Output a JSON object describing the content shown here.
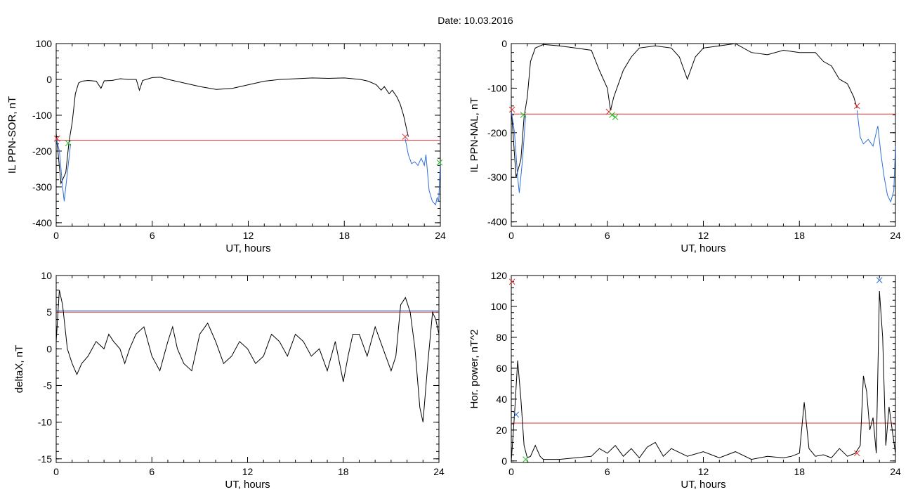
{
  "figure": {
    "title": "Date:  10.03.2016"
  },
  "chart_data": [
    {
      "type": "line",
      "panel": "top-left",
      "xlabel": "UT, hours",
      "ylabel": "IL PPN-SOR, nT",
      "xlim": [
        0,
        24
      ],
      "ylim": [
        -410,
        100
      ],
      "xticks": [
        0,
        6,
        12,
        18,
        24
      ],
      "yticks": [
        100,
        0,
        -100,
        -200,
        -300,
        -400
      ],
      "grid": false,
      "series": [
        {
          "color": "#000000",
          "x": [
            0,
            0.3,
            0.6,
            0.8,
            1.0,
            1.2,
            1.4,
            1.6,
            2.0,
            2.5,
            2.8,
            3.0,
            3.5,
            4.0,
            4.5,
            5.0,
            5.2,
            5.4,
            6.0,
            6.5,
            7.0,
            8.0,
            9.0,
            10.0,
            11.0,
            12.0,
            13.0,
            14.0,
            15.0,
            16.0,
            17.0,
            18.0,
            19.0,
            19.5,
            20.0,
            20.3,
            20.5,
            20.8,
            21.0,
            21.3,
            21.5,
            21.7,
            21.9,
            22.0
          ],
          "values": [
            -150,
            -290,
            -260,
            -175,
            -120,
            -40,
            -10,
            -5,
            -3,
            -5,
            -25,
            -4,
            -3,
            2,
            0,
            0,
            -30,
            -3,
            5,
            6,
            0,
            -10,
            -20,
            -28,
            -25,
            -15,
            -5,
            0,
            2,
            4,
            3,
            4,
            0,
            -5,
            -15,
            -30,
            -20,
            -40,
            -30,
            -50,
            -70,
            -100,
            -140,
            -160
          ]
        },
        {
          "color": "#2f6fd6",
          "x": [
            0.0,
            0.2,
            0.4,
            0.5,
            0.7,
            0.9,
            21.8,
            22.0,
            22.2,
            22.4,
            22.6,
            22.8,
            23.0,
            23.1,
            23.3,
            23.5,
            23.7,
            23.8,
            23.9,
            24.0
          ],
          "values": [
            -165,
            -200,
            -300,
            -340,
            -260,
            -180,
            -165,
            -210,
            -235,
            -230,
            -240,
            -220,
            -240,
            -210,
            -310,
            -340,
            -350,
            -330,
            -340,
            -230
          ]
        }
      ],
      "reference_lines": [
        {
          "y": -170,
          "color": "#e0302f"
        }
      ],
      "markers": [
        {
          "x": 0.05,
          "y": -165,
          "color": "#e0302f",
          "symbol": "x"
        },
        {
          "x": 0.75,
          "y": -178,
          "color": "#2dbd2d",
          "symbol": "x"
        },
        {
          "x": 21.8,
          "y": -160,
          "color": "#e0302f",
          "symbol": "x"
        },
        {
          "x": 23.95,
          "y": -232,
          "color": "#2dbd2d",
          "symbol": "x"
        }
      ]
    },
    {
      "type": "line",
      "panel": "top-right",
      "xlabel": "UT, hours",
      "ylabel": "IL PPN-NAL, nT",
      "xlim": [
        0,
        24
      ],
      "ylim": [
        -410,
        0
      ],
      "xticks": [
        0,
        6,
        12,
        18,
        24
      ],
      "yticks": [
        0,
        -100,
        -200,
        -300,
        -400
      ],
      "grid": false,
      "series": [
        {
          "color": "#000000",
          "x": [
            0,
            0.3,
            0.6,
            0.8,
            1.0,
            1.2,
            1.5,
            2.0,
            3.0,
            4.0,
            5.0,
            5.5,
            6.0,
            6.2,
            6.4,
            6.6,
            7.0,
            7.5,
            8.0,
            9.0,
            10.0,
            10.5,
            11.0,
            11.5,
            12.0,
            13.0,
            14.0,
            15.0,
            16.0,
            17.0,
            18.0,
            19.0,
            19.5,
            20.0,
            20.5,
            21.0,
            21.4,
            21.6
          ],
          "values": [
            -145,
            -300,
            -260,
            -165,
            -120,
            -40,
            -10,
            -2,
            -5,
            -10,
            -15,
            -60,
            -100,
            -150,
            -120,
            -100,
            -60,
            -30,
            -10,
            -5,
            -10,
            -30,
            -80,
            -30,
            -10,
            -5,
            0,
            -20,
            -25,
            -15,
            -20,
            -20,
            -40,
            -50,
            -80,
            -90,
            -120,
            -145
          ]
        },
        {
          "color": "#2f6fd6",
          "x": [
            0.0,
            0.2,
            0.4,
            0.5,
            0.7,
            0.9,
            21.6,
            21.8,
            22.0,
            22.3,
            22.6,
            22.9,
            23.1,
            23.3,
            23.5,
            23.7,
            23.9,
            24.0
          ],
          "values": [
            -150,
            -200,
            -300,
            -335,
            -260,
            -160,
            -150,
            -210,
            -225,
            -215,
            -230,
            -185,
            -250,
            -300,
            -340,
            -355,
            -330,
            -230
          ]
        }
      ],
      "reference_lines": [
        {
          "y": -158,
          "color": "#e0302f"
        }
      ],
      "markers": [
        {
          "x": 0.05,
          "y": -148,
          "color": "#e0302f",
          "symbol": "x"
        },
        {
          "x": 0.75,
          "y": -160,
          "color": "#2dbd2d",
          "symbol": "x"
        },
        {
          "x": 6.1,
          "y": -153,
          "color": "#e0302f",
          "symbol": "x"
        },
        {
          "x": 6.3,
          "y": -160,
          "color": "#2dbd2d",
          "symbol": "x"
        },
        {
          "x": 6.5,
          "y": -165,
          "color": "#2dbd2d",
          "symbol": "x"
        },
        {
          "x": 21.6,
          "y": -140,
          "color": "#e0302f",
          "symbol": "x"
        }
      ]
    },
    {
      "type": "line",
      "panel": "bottom-left",
      "xlabel": "UT, hours",
      "ylabel": "deltaX, nT",
      "xlim": [
        0,
        24
      ],
      "ylim": [
        -15.5,
        10
      ],
      "xticks": [
        0,
        6,
        12,
        18,
        24
      ],
      "yticks": [
        10,
        5,
        0,
        -5,
        -10,
        -15
      ],
      "grid": false,
      "series": [
        {
          "color": "#000000",
          "x": [
            0,
            0.2,
            0.4,
            0.7,
            1.0,
            1.3,
            1.6,
            2.0,
            2.5,
            3.0,
            3.3,
            3.6,
            4.0,
            4.3,
            4.6,
            5.0,
            5.5,
            6.0,
            6.5,
            7.0,
            7.3,
            7.6,
            8.0,
            8.5,
            9.0,
            9.5,
            10.0,
            10.5,
            11.0,
            11.5,
            12.0,
            12.5,
            13.0,
            13.5,
            14.0,
            14.5,
            15.0,
            15.5,
            16.0,
            16.5,
            17.0,
            17.5,
            18.0,
            18.3,
            18.6,
            19.0,
            19.5,
            20.0,
            20.5,
            21.0,
            21.3,
            21.6,
            21.9,
            22.2,
            22.5,
            22.8,
            23.0,
            23.3,
            23.6,
            23.8,
            24.0
          ],
          "values": [
            1,
            8,
            6,
            0,
            -2,
            -3.5,
            -2,
            -1,
            1,
            0,
            2,
            1,
            0,
            -2,
            0,
            2,
            3,
            -1,
            -3,
            1,
            3,
            0,
            -2,
            -3,
            2,
            3.5,
            1,
            -2,
            -1,
            1,
            0,
            -2,
            -1,
            2,
            1,
            -1,
            2,
            1,
            -1,
            0,
            -3,
            1,
            -4.5,
            -1,
            2,
            2,
            -1,
            3,
            0,
            -3,
            -1,
            6,
            7,
            5,
            0,
            -8,
            -10,
            -2,
            5,
            4,
            2
          ]
        }
      ],
      "reference_lines": [
        {
          "y": 5.0,
          "color": "#e0302f"
        },
        {
          "y": 5.2,
          "color": "#2f6fd6"
        }
      ],
      "markers": []
    },
    {
      "type": "line",
      "panel": "bottom-right",
      "xlabel": "UT, hours",
      "ylabel": "Hor. power, nT^2",
      "xlim": [
        0,
        24
      ],
      "ylim": [
        -1,
        120
      ],
      "xticks": [
        0,
        6,
        12,
        18,
        24
      ],
      "yticks": [
        120,
        100,
        80,
        60,
        40,
        20,
        0
      ],
      "grid": false,
      "series": [
        {
          "color": "#000000",
          "x": [
            0,
            0.2,
            0.4,
            0.6,
            0.8,
            1.0,
            1.2,
            1.5,
            1.8,
            2.0,
            3.0,
            4.0,
            5.0,
            5.5,
            6.0,
            6.5,
            7.0,
            7.5,
            8.0,
            8.5,
            9.0,
            9.5,
            10.0,
            11.0,
            12.0,
            13.0,
            14.0,
            15.0,
            16.0,
            17.0,
            17.5,
            18.0,
            18.3,
            18.6,
            19.0,
            19.5,
            20.0,
            20.5,
            21.0,
            21.5,
            21.8,
            22.0,
            22.2,
            22.4,
            22.6,
            22.8,
            23.0,
            23.2,
            23.4,
            23.6,
            23.8,
            24.0
          ],
          "values": [
            0,
            30,
            65,
            40,
            10,
            2,
            3,
            10,
            3,
            1,
            1,
            2,
            3,
            8,
            5,
            10,
            3,
            8,
            2,
            9,
            12,
            3,
            8,
            3,
            6,
            2,
            6,
            1,
            3,
            2,
            3,
            5,
            38,
            8,
            3,
            4,
            2,
            8,
            3,
            5,
            10,
            55,
            45,
            20,
            28,
            5,
            110,
            80,
            10,
            35,
            20,
            5
          ]
        }
      ],
      "reference_lines": [
        {
          "y": 24.5,
          "color": "#e0302f"
        }
      ],
      "markers": [
        {
          "x": 0.05,
          "y": 116,
          "color": "#e0302f",
          "symbol": "x"
        },
        {
          "x": 0.3,
          "y": 30,
          "color": "#2f6fd6",
          "symbol": "x"
        },
        {
          "x": 0.9,
          "y": 1,
          "color": "#2dbd2d",
          "symbol": "x"
        },
        {
          "x": 21.6,
          "y": 5,
          "color": "#e0302f",
          "symbol": "x"
        },
        {
          "x": 23.0,
          "y": 117,
          "color": "#2f6fd6",
          "symbol": "x"
        }
      ]
    }
  ]
}
